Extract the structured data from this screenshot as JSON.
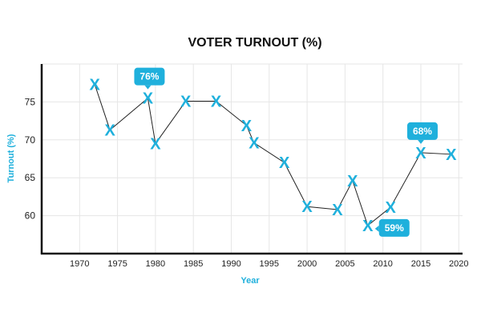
{
  "chart_data": {
    "type": "line",
    "title": "VOTER TURNOUT (%)",
    "xlabel": "Year",
    "ylabel": "Turnout (%)",
    "xlim": [
      1965,
      2020.5
    ],
    "ylim": [
      55,
      80
    ],
    "xticks": [
      1970,
      1975,
      1980,
      1985,
      1990,
      1995,
      2000,
      2005,
      2010,
      2015,
      2020
    ],
    "yticks": [
      60,
      65,
      70,
      75
    ],
    "grid": true,
    "marker": "X",
    "colors": {
      "accent": "#1fb0dc",
      "line": "#222222",
      "grid": "#e6e6e6",
      "axis": "#111111"
    },
    "series": [
      {
        "name": "Turnout",
        "x": [
          1972,
          1974,
          1979,
          1980,
          1984,
          1988,
          1992,
          1993,
          1997,
          2000,
          2004,
          2006,
          2008,
          2011,
          2015,
          2019
        ],
        "y": [
          77.3,
          71.3,
          75.5,
          69.5,
          75.1,
          75.1,
          71.9,
          69.6,
          67.0,
          61.2,
          60.8,
          64.6,
          58.7,
          61.1,
          68.3,
          68.1
        ]
      }
    ],
    "annotations": [
      {
        "x": 1979,
        "y": 75.5,
        "text": "76%",
        "side": "top"
      },
      {
        "x": 2008,
        "y": 58.7,
        "text": "59%",
        "side": "right"
      },
      {
        "x": 2015,
        "y": 68.3,
        "text": "68%",
        "side": "top"
      }
    ]
  }
}
